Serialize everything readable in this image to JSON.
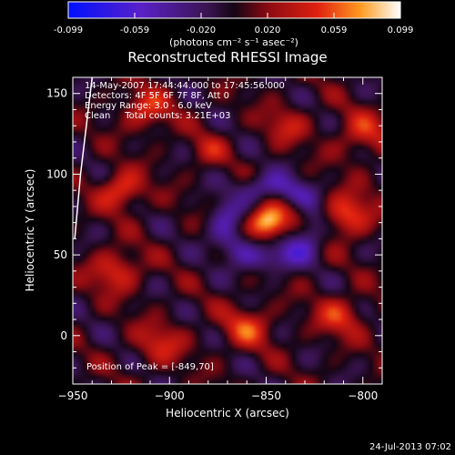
{
  "chart_data": {
    "type": "heatmap",
    "title": "Reconstructed RHESSI Image",
    "colorbar": {
      "ticks": [
        "-0.099",
        "-0.059",
        "-0.020",
        "0.020",
        "0.059",
        "0.099"
      ],
      "range": [
        -0.099,
        0.099
      ],
      "unit_label": "(photons cm⁻² s⁻¹ asec⁻²)"
    },
    "xlabel": "Heliocentric X (arcsec)",
    "ylabel": "Heliocentric Y (arcsec)",
    "xlim": [
      -950,
      -790
    ],
    "ylim": [
      -30,
      160
    ],
    "xticks": [
      -950,
      -900,
      -850,
      -800
    ],
    "yticks": [
      0,
      50,
      100,
      150
    ],
    "annotations": {
      "time_range": "14-May-2007 17:44:44.000 to 17:45:56.000",
      "detectors": "Detectors: 4F 5F 6F 7F 8F, Att 0",
      "energy_range": "Energy Range: 3.0 - 6.0 keV",
      "clean_counts": "Clean     Total counts: 3.21E+03",
      "peak_position": "Position of Peak = [-849,70]"
    },
    "peak": {
      "x": -849,
      "y": 70,
      "value": 0.099
    },
    "sources": [
      {
        "x": -849,
        "y": 70,
        "sigma": 7,
        "amp": 0.099
      },
      {
        "x": -925,
        "y": 90,
        "sigma": 8,
        "amp": 0.058
      },
      {
        "x": -928,
        "y": 40,
        "sigma": 9,
        "amp": 0.05
      },
      {
        "x": -808,
        "y": 75,
        "sigma": 9,
        "amp": 0.062
      },
      {
        "x": -800,
        "y": 125,
        "sigma": 10,
        "amp": 0.04
      },
      {
        "x": -912,
        "y": 140,
        "sigma": 9,
        "amp": 0.045
      },
      {
        "x": -860,
        "y": 5,
        "sigma": 9,
        "amp": 0.048
      },
      {
        "x": -905,
        "y": -5,
        "sigma": 9,
        "amp": 0.04
      },
      {
        "x": -812,
        "y": 12,
        "sigma": 9,
        "amp": 0.045
      },
      {
        "x": -880,
        "y": 115,
        "sigma": 7,
        "amp": 0.03
      },
      {
        "x": -840,
        "y": 130,
        "sigma": 8,
        "amp": 0.035
      },
      {
        "x": -865,
        "y": 85,
        "sigma": 6,
        "amp": 0.03
      },
      {
        "x": -832,
        "y": 78,
        "sigma": 6,
        "amp": 0.028
      }
    ],
    "limb_line": [
      [
        -940,
        160
      ],
      [
        -946,
        100
      ],
      [
        -949,
        60
      ]
    ]
  },
  "footer": {
    "date_stamp": "24-Jul-2013 07:02"
  }
}
